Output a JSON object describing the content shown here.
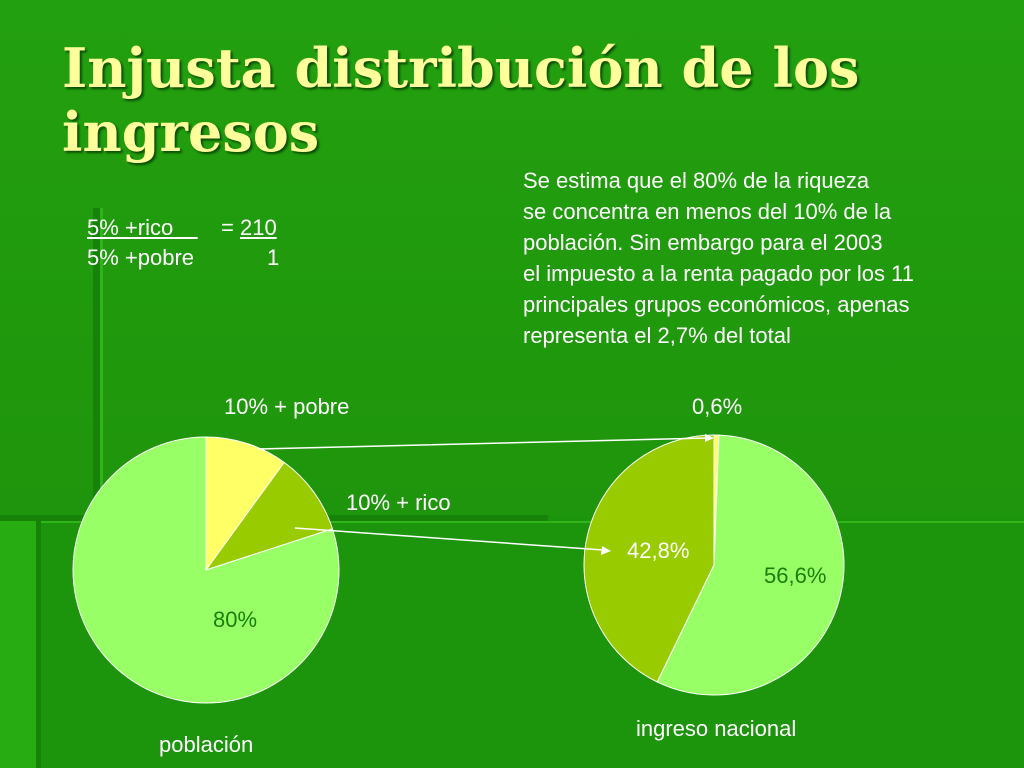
{
  "slide": {
    "title": "Injusta distribución de los ingresos",
    "stats": {
      "rich_label": "5% +rico    ",
      "rich_value": "= 210",
      "poor_label": "5% +pobre",
      "poor_value": "1"
    },
    "note_lines": [
      "Se estima que el 80% de la riqueza",
      "se concentra en menos del 10% de la",
      "población. Sin embargo para el 2003",
      "el impuesto a la renta pagado por los 11",
      "principales grupos económicos, apenas",
      "representa el 2,7% del total"
    ]
  },
  "colors": {
    "background": "#209a0d",
    "title": "#ffff9c",
    "pie_light": "#99ff66",
    "pie_mid": "#99cc00",
    "pie_yellow": "#ffff66"
  },
  "chart_data": [
    {
      "type": "pie",
      "xlabel": "población",
      "slices": [
        {
          "label": "10% + pobre",
          "value": 10,
          "color": "#ffff66"
        },
        {
          "label": "10% + rico",
          "value": 10,
          "color": "#99cc00"
        },
        {
          "label": "80%",
          "value": 80,
          "color": "#99ff66"
        }
      ]
    },
    {
      "type": "pie",
      "xlabel": "ingreso nacional",
      "slices": [
        {
          "label": "0,6%",
          "value": 0.6,
          "color": "#ffff66"
        },
        {
          "label": "56,6%",
          "value": 56.6,
          "color": "#99ff66"
        },
        {
          "label": "42,8%",
          "value": 42.8,
          "color": "#99cc00"
        }
      ]
    }
  ]
}
